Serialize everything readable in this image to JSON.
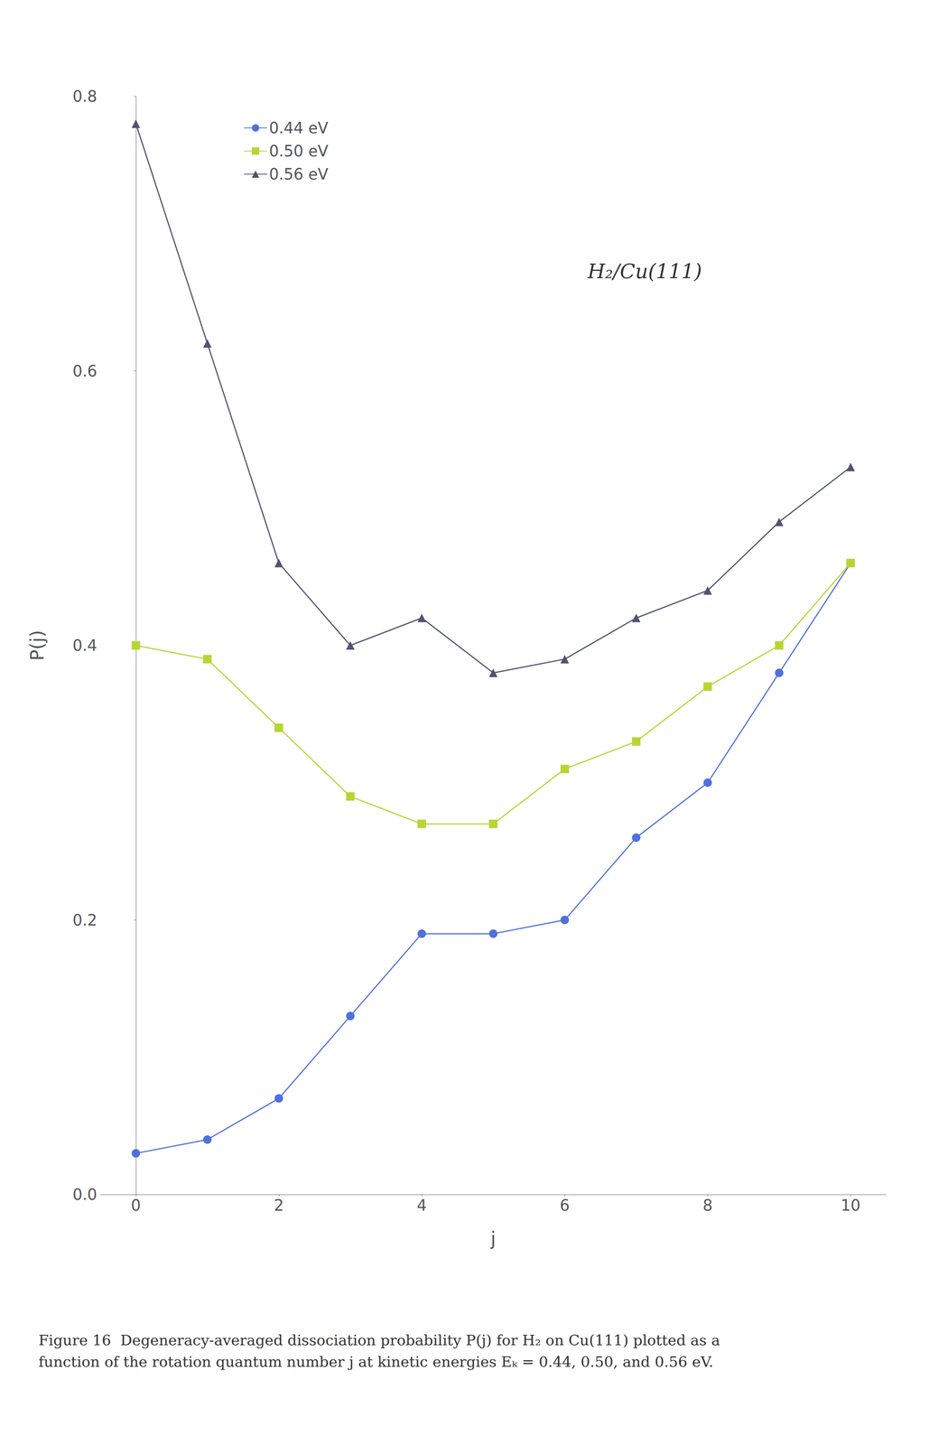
{
  "chart_data": {
    "type": "line",
    "xlabel": "j",
    "ylabel": "P(j)",
    "annotations": [
      "H₂/Cu(111)",
      "Figure 16  Degeneracy-averaged dissociation probability P(j) for H₂ on Cu(111) plotted as a\nfunction of the rotation quantum number j at kinetic energies Eₖ = 0.44, 0.50, and 0.56 eV."
    ],
    "x": [
      0,
      1,
      2,
      3,
      4,
      5,
      6,
      7,
      8,
      9,
      10
    ],
    "series": [
      {
        "name": "0.44 eV",
        "marker": "circle",
        "values": [
          0.03,
          0.04,
          0.07,
          0.13,
          0.19,
          0.19,
          0.2,
          0.26,
          0.3,
          0.38,
          0.46
        ]
      },
      {
        "name": "0.50 eV",
        "marker": "square",
        "values": [
          0.4,
          0.39,
          0.34,
          0.29,
          0.27,
          0.27,
          0.31,
          0.33,
          0.37,
          0.4,
          0.46
        ]
      },
      {
        "name": "0.56 eV",
        "marker": "triangle",
        "values": [
          0.78,
          0.62,
          0.46,
          0.4,
          0.42,
          0.38,
          0.39,
          0.42,
          0.44,
          0.49,
          0.53
        ]
      }
    ],
    "xlim": [
      -0.5,
      10.5
    ],
    "ylim": [
      0.0,
      0.8
    ],
    "xticks": [
      0,
      2,
      4,
      6,
      8,
      10
    ],
    "yticks": [
      {
        "value": 0.0,
        "label": "0.0"
      },
      0.2,
      0.4,
      0.6,
      0.8
    ],
    "legend": "upper left",
    "grid": false
  }
}
